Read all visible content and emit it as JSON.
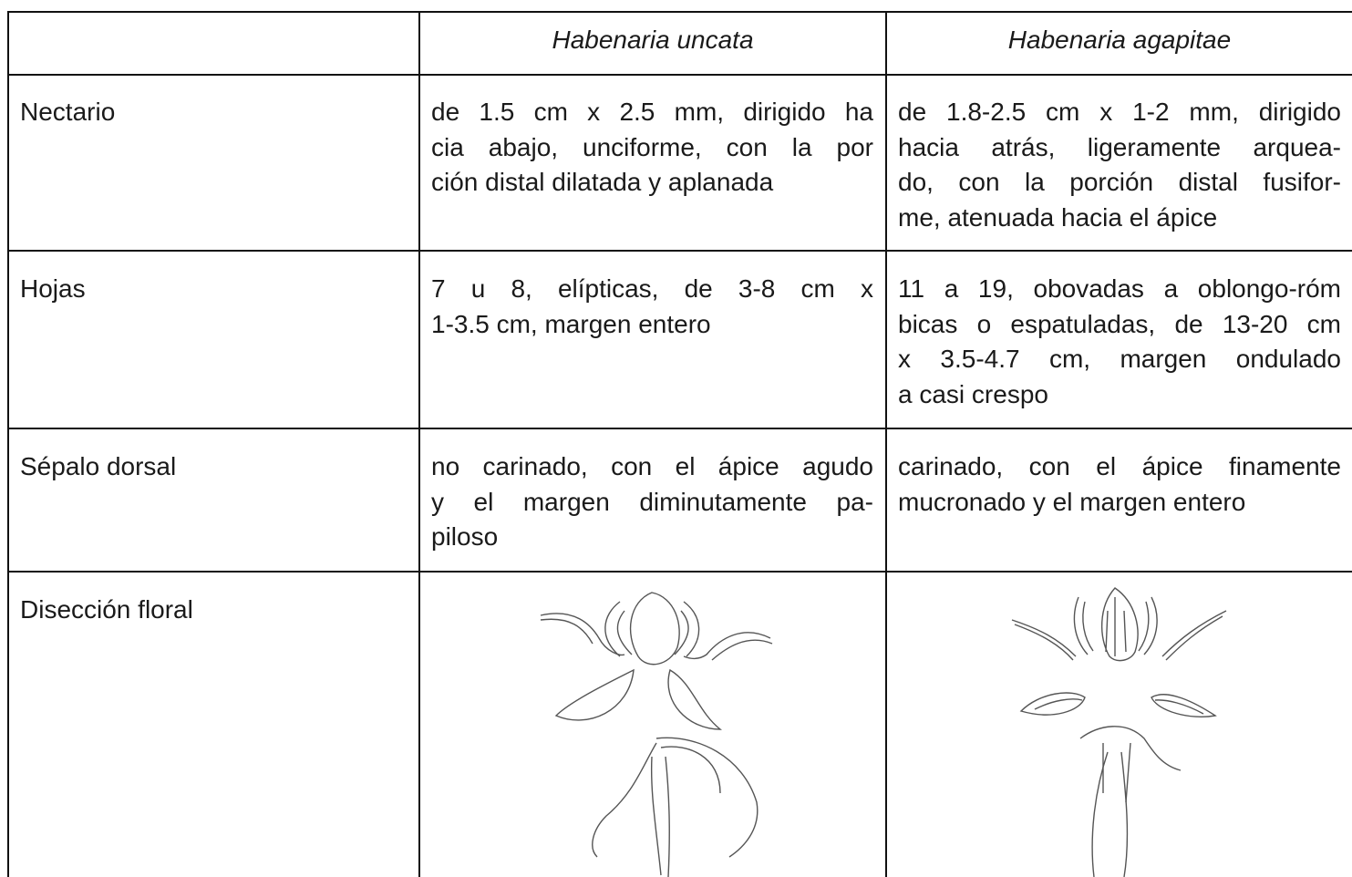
{
  "table": {
    "columns": [
      "Habenaria uncata",
      "Habenaria agapitae"
    ],
    "rows": [
      {
        "label": "Nectario",
        "cells": [
          [
            "de 1.5 cm x 2.5 mm, dirigido ha",
            "cia abajo, unciforme, con la por",
            "ción distal dilatada y aplanada"
          ],
          [
            "de 1.8-2.5 cm x 1-2 mm, dirigido",
            "hacia atrás, ligeramente arquea-",
            "do, con la porción distal fusifor-",
            "me, atenuada hacia el ápice"
          ]
        ]
      },
      {
        "label": "Hojas",
        "cells": [
          [
            "7 u 8, elípticas, de 3-8 cm x",
            "1-3.5 cm, margen entero"
          ],
          [
            "11 a 19, obovadas a oblongo-róm",
            "bicas o espatuladas, de 13-20 cm",
            "x 3.5-4.7 cm, margen ondulado",
            "a casi crespo"
          ]
        ]
      },
      {
        "label": "Sépalo dorsal",
        "cells": [
          [
            "no carinado, con el ápice agudo",
            "y el margen diminutamente pa-",
            "piloso"
          ],
          [
            "carinado, con el ápice finamente",
            "mucronado y el margen entero"
          ]
        ]
      },
      {
        "label": "Disección floral"
      }
    ]
  }
}
